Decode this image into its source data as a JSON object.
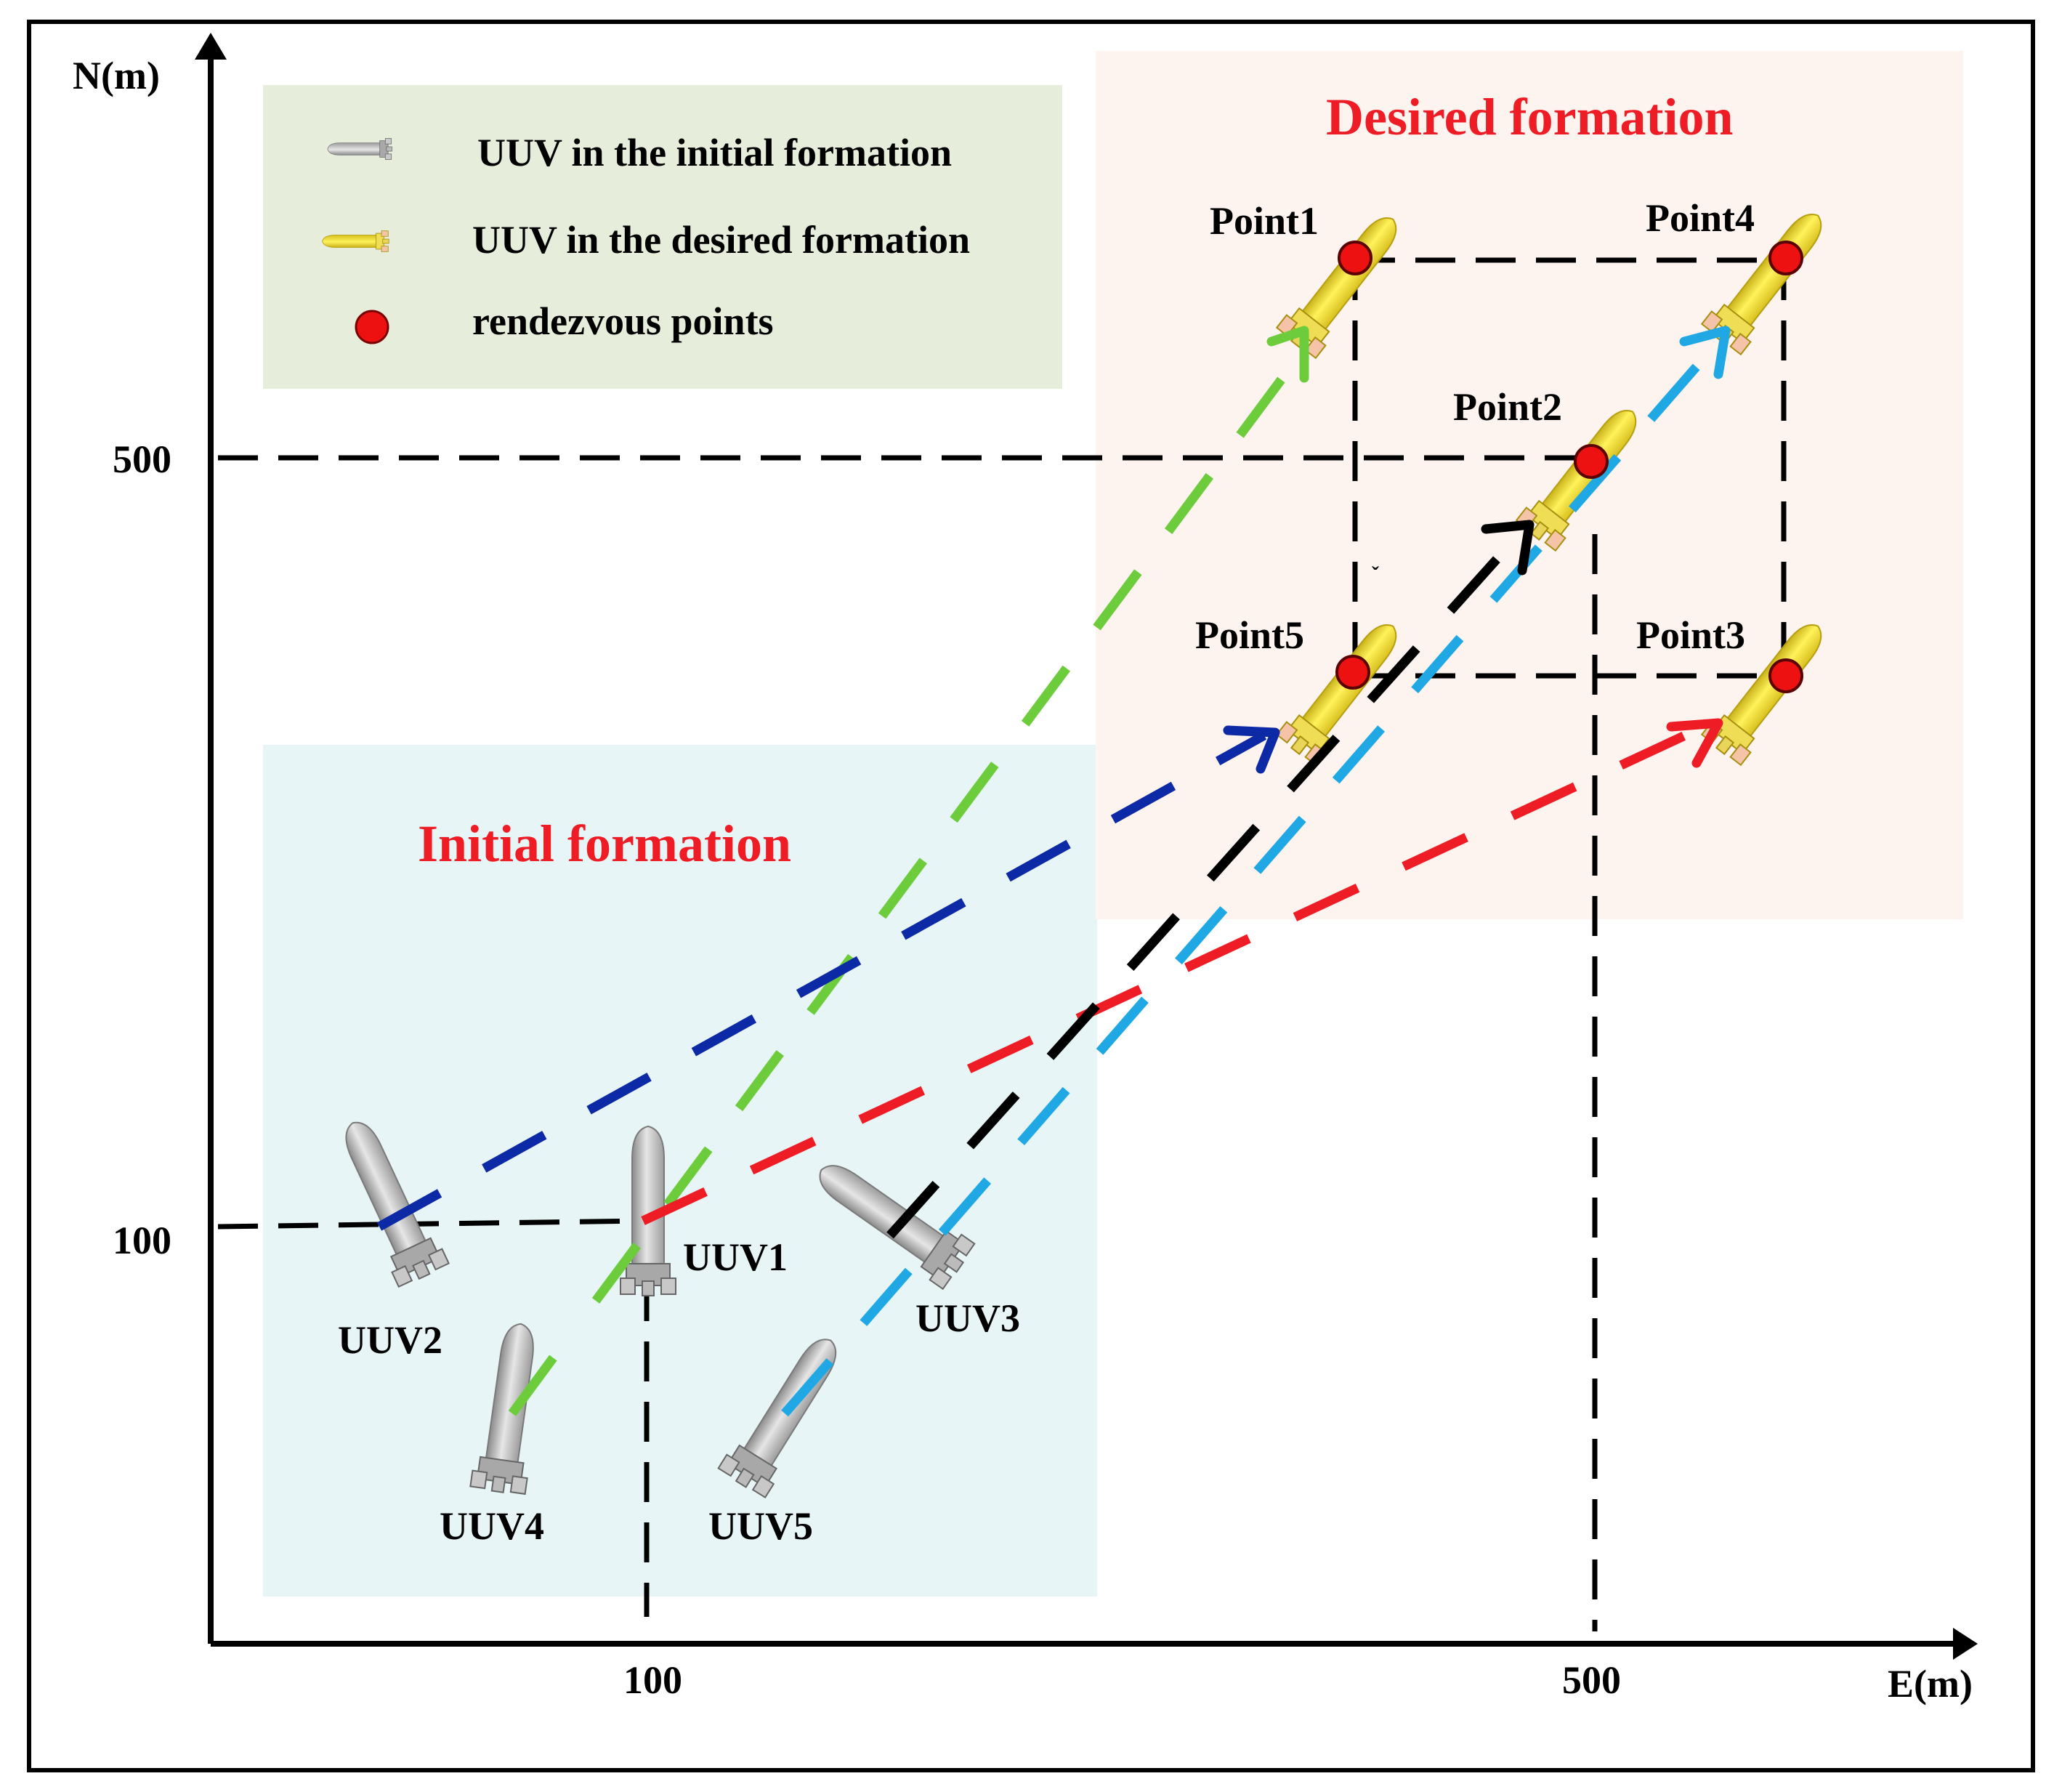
{
  "axes": {
    "x_label": "E(m)",
    "y_label": "N(m)",
    "x_ticks": [
      "100",
      "500"
    ],
    "y_ticks": [
      "500",
      "100"
    ]
  },
  "legend": {
    "initial_uuv": "UUV in the initial formation",
    "desired_uuv": "UUV in the desired formation",
    "rendezvous": "rendezvous points"
  },
  "regions": {
    "initial_title": "Initial formation",
    "desired_title": "Desired formation"
  },
  "uuvs": [
    {
      "name": "UUV1"
    },
    {
      "name": "UUV2"
    },
    {
      "name": "UUV3"
    },
    {
      "name": "UUV4"
    },
    {
      "name": "UUV5"
    }
  ],
  "points": [
    {
      "name": "Point1"
    },
    {
      "name": "Point2"
    },
    {
      "name": "Point3"
    },
    {
      "name": "Point4"
    },
    {
      "name": "Point5"
    }
  ],
  "stray_mark": "ˇ",
  "colors": {
    "initial_region": "#e8f5f7",
    "desired_region": "#fdf3ef",
    "legend_bg": "#e6eedb",
    "title_red": "#ee1c24",
    "uuv1_path": "#ee1c24",
    "uuv2_path": "#0d2aa6",
    "uuv3_path": "#000000",
    "uuv4_path": "#6dcc3c",
    "uuv5_path": "#20a8e4",
    "rendezvous": "#ee1111"
  }
}
